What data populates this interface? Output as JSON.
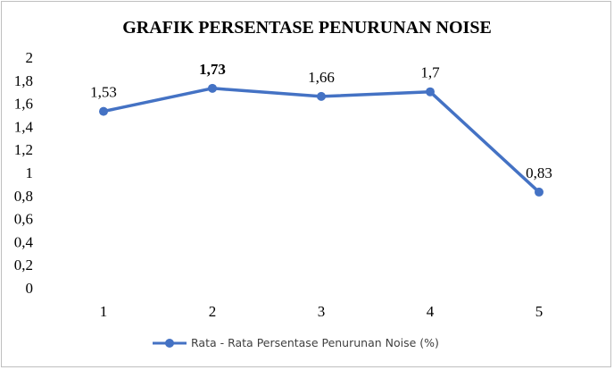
{
  "chart_data": {
    "type": "line",
    "title": "GRAFIK PERSENTASE PENURUNAN NOISE",
    "x": [
      "1",
      "2",
      "3",
      "4",
      "5"
    ],
    "y_ticks": [
      "0",
      "0,2",
      "0,4",
      "0,6",
      "0,8",
      "1",
      "1,2",
      "1,4",
      "1,6",
      "1,8",
      "2"
    ],
    "ylim": [
      0,
      2
    ],
    "grid": false,
    "legend_position": "bottom",
    "series": [
      {
        "name": "Rata - Rata Persentase Penurunan Noise (%)",
        "values": [
          1.53,
          1.73,
          1.66,
          1.7,
          0.83
        ],
        "labels": [
          "1,53",
          "1,73",
          "1,66",
          "1,7",
          "0,83"
        ],
        "bold_label_index": 1,
        "color": "#4472c4"
      }
    ]
  }
}
